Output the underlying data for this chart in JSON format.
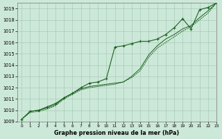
{
  "xlabel": "Graphe pression niveau de la mer (hPa)",
  "ylim": [
    1009,
    1019.5
  ],
  "xlim": [
    -0.5,
    23
  ],
  "yticks": [
    1009,
    1010,
    1011,
    1012,
    1013,
    1014,
    1015,
    1016,
    1017,
    1018,
    1019
  ],
  "xticks": [
    0,
    1,
    2,
    3,
    4,
    5,
    6,
    7,
    8,
    9,
    10,
    11,
    12,
    13,
    14,
    15,
    16,
    17,
    18,
    19,
    20,
    21,
    22,
    23
  ],
  "bg_color": "#cce8d8",
  "grid_color": "#aacaba",
  "line_color": "#1a6020",
  "series1_marked": {
    "x": [
      0,
      1,
      2,
      3,
      4,
      5,
      6,
      7,
      8,
      9,
      10,
      11,
      12,
      13,
      14,
      15,
      16,
      17,
      18,
      19,
      20,
      21,
      22,
      23
    ],
    "y": [
      1009.2,
      1009.9,
      1010.0,
      1010.3,
      1010.6,
      1011.1,
      1011.5,
      1012.0,
      1012.4,
      1012.5,
      1012.8,
      1015.6,
      1015.7,
      1015.9,
      1016.1,
      1016.1,
      1016.3,
      1016.7,
      1017.3,
      1018.1,
      1017.2,
      1018.9,
      1019.1,
      1019.5
    ]
  },
  "series2_line": {
    "x": [
      0,
      1,
      2,
      3,
      4,
      5,
      6,
      7,
      8,
      9,
      10,
      11,
      12,
      13,
      14,
      15,
      16,
      17,
      18,
      19,
      20,
      21,
      22,
      23
    ],
    "y": [
      1009.2,
      1009.9,
      1010.0,
      1010.2,
      1010.5,
      1011.1,
      1011.5,
      1011.9,
      1012.1,
      1012.2,
      1012.3,
      1012.4,
      1012.5,
      1013.0,
      1013.7,
      1014.9,
      1015.7,
      1016.3,
      1016.7,
      1017.2,
      1017.5,
      1018.2,
      1018.8,
      1019.5
    ]
  },
  "series3_dotted": {
    "x": [
      0,
      1,
      2,
      3,
      4,
      5,
      6,
      7,
      8,
      9,
      10,
      11,
      12,
      13,
      14,
      15,
      16,
      17,
      18,
      19,
      20,
      21,
      22,
      23
    ],
    "y": [
      1009.2,
      1009.8,
      1009.9,
      1010.1,
      1010.4,
      1011.0,
      1011.4,
      1011.8,
      1012.0,
      1012.1,
      1012.2,
      1012.3,
      1012.5,
      1012.9,
      1013.5,
      1014.7,
      1015.5,
      1016.0,
      1016.5,
      1017.0,
      1017.4,
      1018.0,
      1018.6,
      1019.5
    ]
  }
}
